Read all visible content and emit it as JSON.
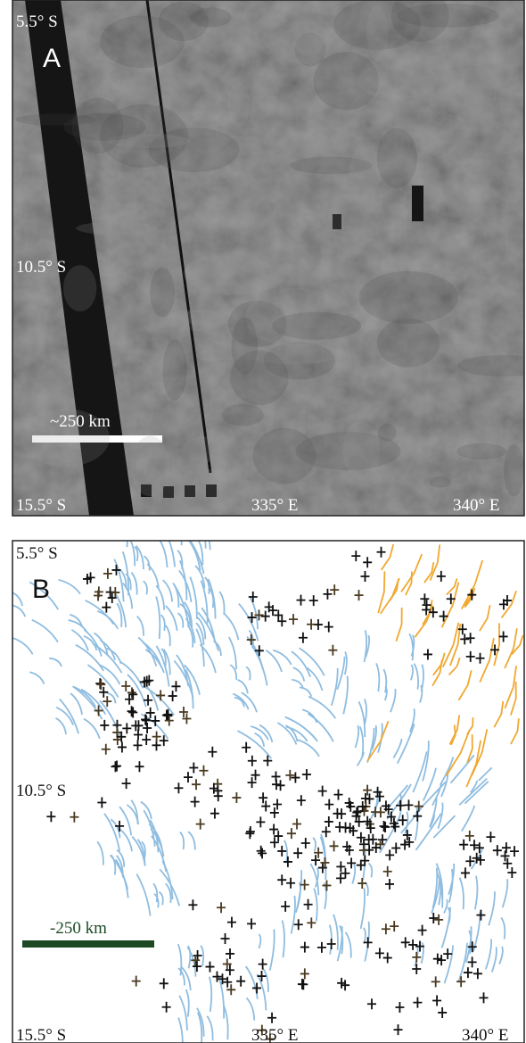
{
  "panel_a": {
    "label": "A",
    "lat_top": "5.5° S",
    "lat_mid": "10.5° S",
    "lat_bottom": "15.5° S",
    "lon_left": "335° E",
    "lon_right": "340° E",
    "scale_bar": "~250 km"
  },
  "panel_b": {
    "label": "B",
    "lat_top": "5.5° S",
    "lat_mid": "10.5° S",
    "lat_bottom": "15.5° S",
    "lon_left": "335° E",
    "lon_right": "340° E",
    "scale_bar": "-250 km"
  }
}
